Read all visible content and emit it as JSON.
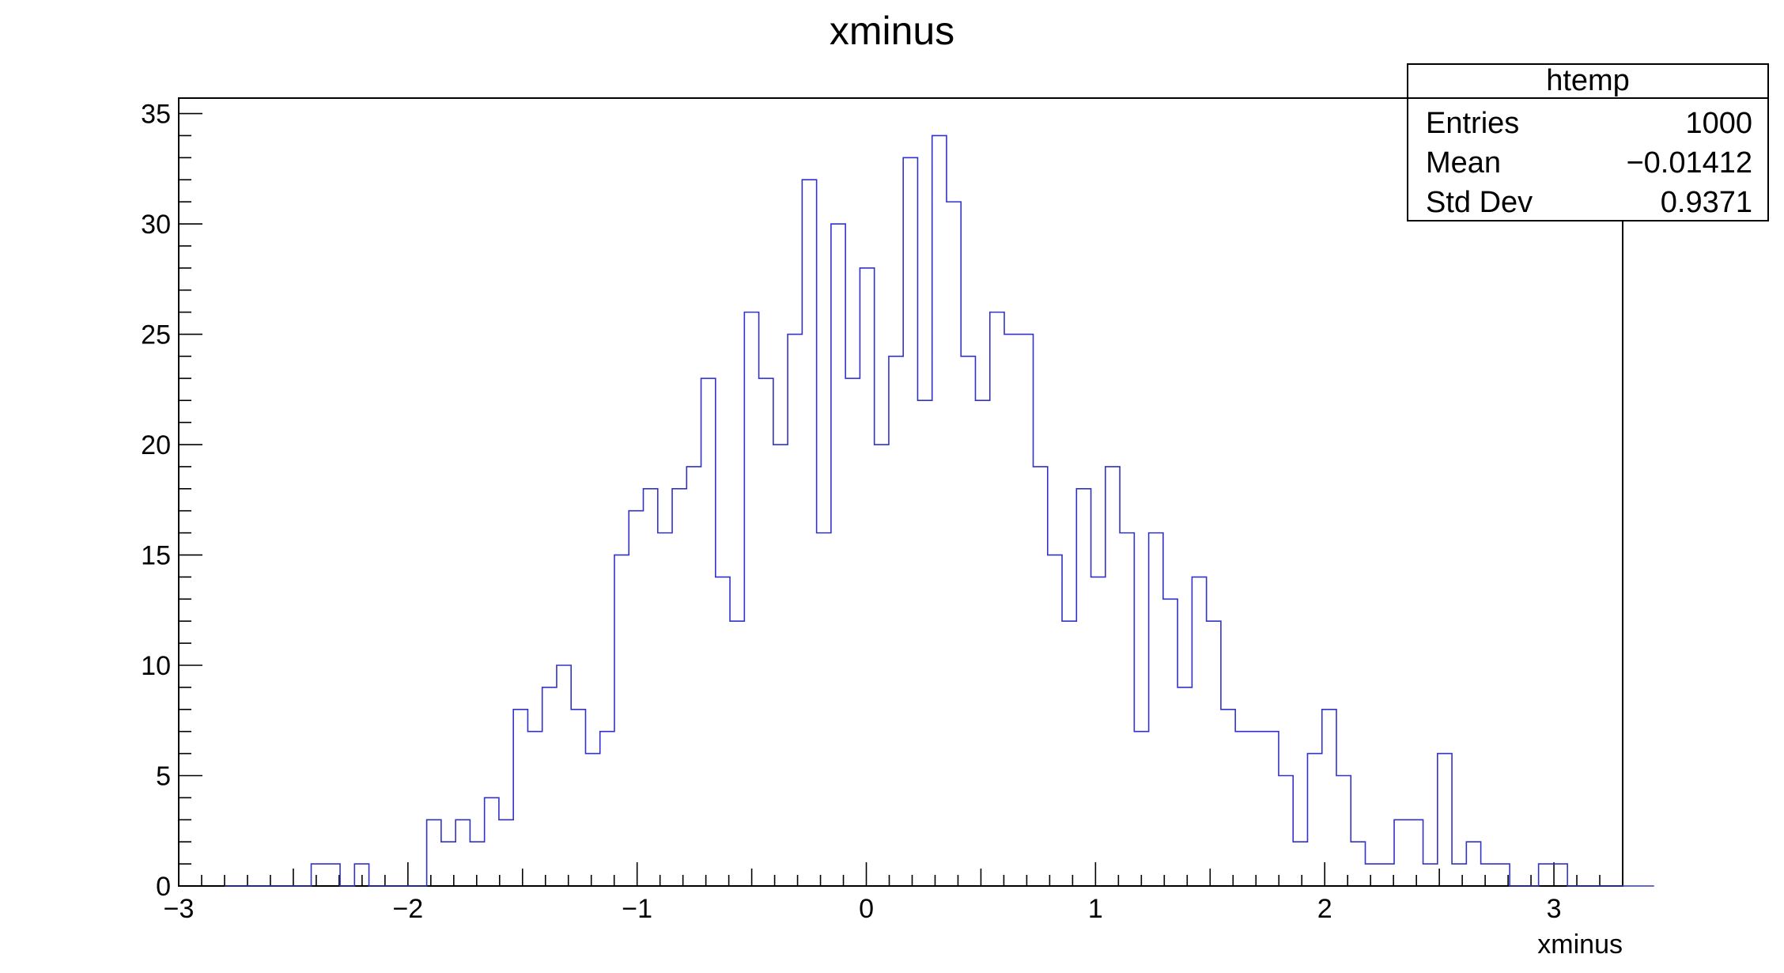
{
  "chart_data": {
    "type": "bar",
    "title": "xminus",
    "xlabel": "xminus",
    "ylabel": "",
    "xlim": [
      -3,
      3.3
    ],
    "ylim": [
      0,
      35.7
    ],
    "x_ticks": [
      "−3",
      "−2",
      "−1",
      "0",
      "1",
      "2",
      "3"
    ],
    "x_tick_values": [
      -3,
      -2,
      -1,
      0,
      1,
      2,
      3
    ],
    "y_ticks": [
      "0",
      "5",
      "10",
      "15",
      "20",
      "25",
      "30",
      "35"
    ],
    "y_tick_values": [
      0,
      5,
      10,
      15,
      20,
      25,
      30,
      35
    ],
    "bin_edges_start": -2.8,
    "bin_width": 0.063,
    "values": [
      0,
      0,
      0,
      0,
      0,
      0,
      1,
      1,
      0,
      1,
      0,
      0,
      0,
      0,
      3,
      2,
      3,
      2,
      4,
      3,
      8,
      7,
      9,
      10,
      8,
      6,
      7,
      15,
      17,
      18,
      16,
      18,
      19,
      23,
      14,
      12,
      26,
      23,
      20,
      25,
      32,
      16,
      30,
      23,
      28,
      20,
      24,
      33,
      22,
      34,
      31,
      24,
      22,
      26,
      25,
      25,
      19,
      15,
      12,
      18,
      14,
      19,
      16,
      7,
      16,
      13,
      9,
      14,
      12,
      8,
      7,
      7,
      7,
      5,
      2,
      6,
      8,
      5,
      2,
      1,
      1,
      3,
      3,
      1,
      6,
      1,
      2,
      1,
      1,
      0,
      0,
      1,
      1,
      0,
      0,
      0,
      0,
      0,
      0
    ],
    "series_color": "#3232c8",
    "stats_box": {
      "title": "htemp",
      "rows": [
        {
          "label": "Entries",
          "value": "1000"
        },
        {
          "label": "Mean",
          "value": "−0.01412"
        },
        {
          "label": "Std Dev",
          "value": "0.9371"
        }
      ]
    },
    "grid": false,
    "legend": "top-right"
  }
}
